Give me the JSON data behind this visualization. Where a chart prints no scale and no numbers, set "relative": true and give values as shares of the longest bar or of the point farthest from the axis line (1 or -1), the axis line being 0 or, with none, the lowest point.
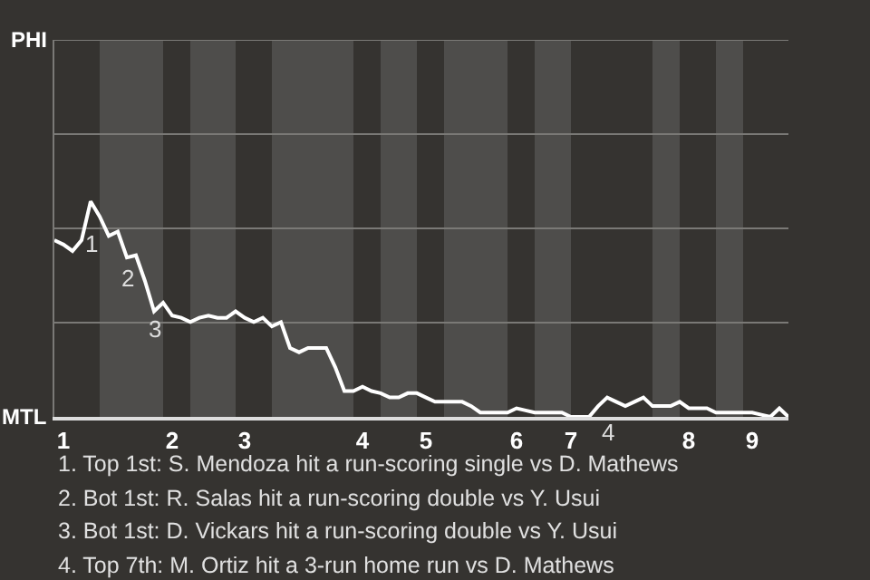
{
  "chart_data": {
    "type": "line",
    "relative": true,
    "categories": [
      null,
      "1",
      null,
      null,
      null,
      null,
      null,
      null,
      null,
      null,
      null,
      null,
      null,
      "2",
      null,
      null,
      null,
      null,
      null,
      null,
      null,
      "3",
      null,
      null,
      null,
      null,
      null,
      null,
      null,
      null,
      null,
      null,
      null,
      null,
      "4",
      null,
      null,
      null,
      null,
      null,
      null,
      "5",
      null,
      null,
      null,
      null,
      null,
      null,
      null,
      null,
      null,
      "6",
      null,
      null,
      null,
      null,
      null,
      "7",
      null,
      null,
      null,
      null,
      null,
      null,
      null,
      null,
      null,
      null,
      null,
      null,
      "8",
      null,
      null,
      null,
      null,
      null,
      null,
      "9",
      null,
      null,
      null,
      null
    ],
    "series": [
      {
        "color": "#ffffff",
        "values": [
          0.82,
          0.8,
          0.77,
          0.82,
          1,
          0.93,
          0.84,
          0.86,
          0.74,
          0.75,
          0.63,
          0.49,
          0.53,
          0.47,
          0.46,
          0.44,
          0.46,
          0.47,
          0.46,
          0.46,
          0.49,
          0.46,
          0.44,
          0.46,
          0.42,
          0.44,
          0.32,
          0.3,
          0.32,
          0.32,
          0.32,
          0.23,
          0.12,
          0.12,
          0.14,
          0.12,
          0.11,
          0.09,
          0.09,
          0.11,
          0.11,
          0.09,
          0.07,
          0.07,
          0.07,
          0.07,
          0.05,
          0.02,
          0.02,
          0.02,
          0.02,
          0.04,
          0.03,
          0.02,
          0.02,
          0.02,
          0.02,
          0,
          0,
          0,
          0.05,
          0.09,
          0.07,
          0.05,
          0.07,
          0.09,
          0.05,
          0.05,
          0.05,
          0.07,
          0.04,
          0.04,
          0.04,
          0.02,
          0.02,
          0.02,
          0.02,
          0.02,
          0.01,
          0,
          0.04,
          0
        ]
      }
    ],
    "marker": "none",
    "line_style": "solid",
    "ref_lines": [
      {
        "axis": "y",
        "value": 0.4375,
        "color": "#7a7976"
      },
      {
        "axis": "y",
        "value": 0.875,
        "color": "#7a7976"
      },
      {
        "axis": "y",
        "value": 1.3125,
        "color": "#7a7976"
      },
      {
        "axis": "y",
        "value": 1.75,
        "color": "#7a7976"
      }
    ],
    "annotations": [
      "PHI",
      "MTL",
      {
        "text": "1",
        "y": 0.88
      },
      {
        "text": "2",
        "y": 0.72
      },
      {
        "text": "3",
        "y": 0.49
      },
      "4",
      "1. Top 1st: S. Mendoza hit a run-scoring single vs D. Mathews",
      "2. Bot 1st: R. Salas hit a run-scoring double vs Y. Usui",
      "3. Bot 1st: D. Vickars hit a run-scoring double vs Y. Usui",
      "4. Top 7th: M. Ortiz hit a 3-run home run vs D. Mathews"
    ]
  }
}
